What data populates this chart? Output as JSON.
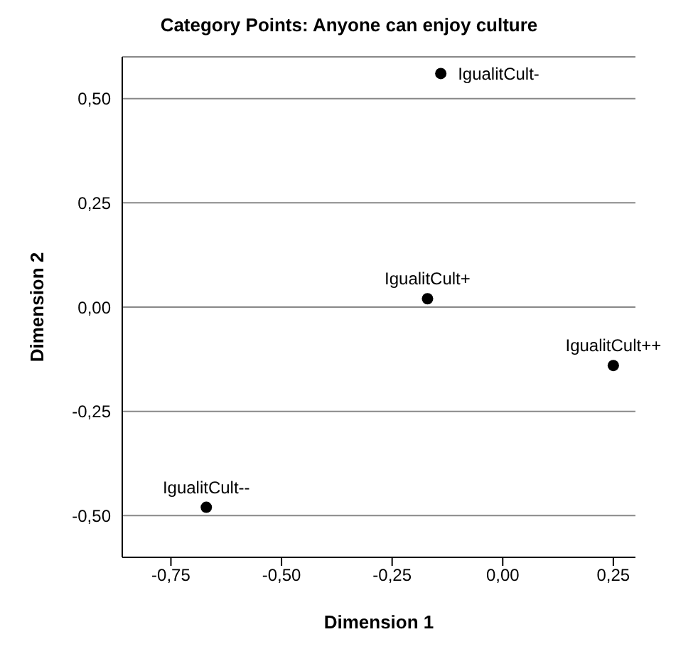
{
  "chart_data": {
    "type": "scatter",
    "title": "Category Points: Anyone can enjoy culture",
    "xlabel": "Dimension 1",
    "ylabel": "Dimension 2",
    "x": [
      -0.14,
      -0.17,
      0.25,
      -0.67
    ],
    "values": [
      0.56,
      0.02,
      -0.14,
      -0.48
    ],
    "color": "#000000",
    "marker": "circle",
    "annotations": [
      {
        "text": "IgualitCult-",
        "x": -0.14,
        "y": 0.56
      },
      {
        "text": "IgualitCult+",
        "x": -0.17,
        "y": 0.02
      },
      {
        "text": "IgualitCult++",
        "x": 0.25,
        "y": -0.14
      },
      {
        "text": "IgualitCult--",
        "x": -0.67,
        "y": -0.48
      }
    ],
    "xlim": [
      -0.86,
      0.3
    ],
    "ylim": [
      -0.6,
      0.6
    ],
    "xticks": [
      {
        "value": -0.75,
        "label": "-0,75"
      },
      {
        "value": -0.5,
        "label": "-0,50"
      },
      {
        "value": -0.25,
        "label": "-0,25"
      },
      {
        "value": 0,
        "label": "0,00"
      },
      {
        "value": 0.25,
        "label": "0,25"
      }
    ],
    "yticks": [
      {
        "value": -0.5,
        "label": "-0,50"
      },
      {
        "value": -0.25,
        "label": "-0,25"
      },
      {
        "value": 0,
        "label": "0,00"
      },
      {
        "value": 0.25,
        "label": "0,25"
      },
      {
        "value": 0.5,
        "label": "0,50"
      }
    ],
    "grid": "y"
  }
}
